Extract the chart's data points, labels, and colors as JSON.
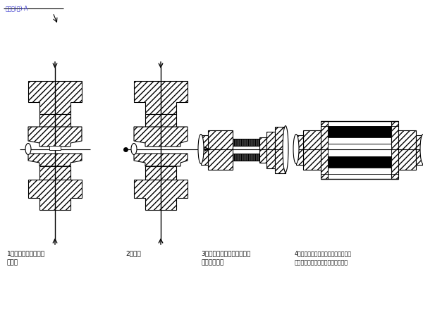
{
  "watermark": "钻孔桩(桩)-A",
  "bg_color": "#ffffff",
  "line_color": "#000000",
  "label1_line1": "1、用直螺纹滚轧机夹",
  "label1_line2": "滚钢筋",
  "label2": "2、套筒",
  "label3_line1": "3、用直螺纹套丝机对钢筋头",
  "label3_line2": "螺纹进行丝扣",
  "label4_line1": "4、用直螺纹套筒对接已丝扣钢筋进行",
  "label4_line2": "连接，完成一个直螺纹套筒接头施工",
  "fig_width": 6.0,
  "fig_height": 4.5,
  "dpi": 100
}
